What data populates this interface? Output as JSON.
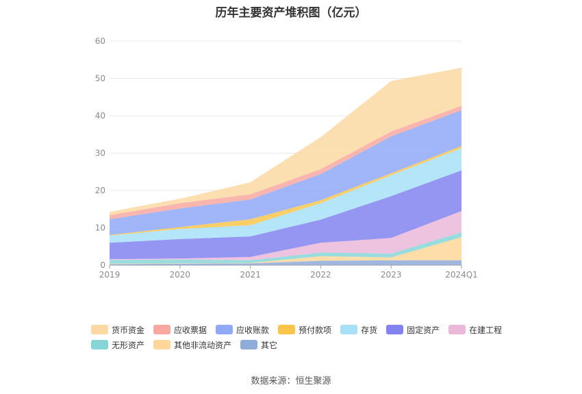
{
  "title": "历年主要资产堆积图（亿元）",
  "source": "数据来源：恒生聚源",
  "chart_data": {
    "type": "area",
    "stacked": true,
    "categories": [
      "2019",
      "2020",
      "2021",
      "2022",
      "2023",
      "2024Q1"
    ],
    "ylim": [
      0,
      60
    ],
    "yticks": [
      0,
      10,
      20,
      30,
      40,
      50,
      60
    ],
    "grid": true,
    "legend_position": "bottom",
    "series": [
      {
        "name": "其它",
        "color": "#8facd9",
        "values": [
          0.3,
          0.4,
          0.5,
          1.2,
          1.3,
          1.3
        ]
      },
      {
        "name": "其他非流动资产",
        "color": "#ffd79a",
        "values": [
          0.1,
          0.1,
          0.1,
          1.2,
          0.8,
          6.2
        ]
      },
      {
        "name": "无形资产",
        "color": "#86d6d8",
        "values": [
          1.0,
          1.0,
          0.7,
          1.0,
          1.0,
          1.3
        ]
      },
      {
        "name": "在建工程",
        "color": "#eab8d9",
        "values": [
          0.2,
          0.3,
          0.9,
          2.6,
          4.2,
          5.7
        ]
      },
      {
        "name": "固定资产",
        "color": "#8282f0",
        "values": [
          4.4,
          5.2,
          5.5,
          6.2,
          11.2,
          10.9
        ]
      },
      {
        "name": "存货",
        "color": "#a8e0f8",
        "values": [
          1.9,
          2.7,
          3.0,
          4.4,
          5.6,
          5.9
        ]
      },
      {
        "name": "预付款项",
        "color": "#fbc54c",
        "values": [
          0.2,
          0.5,
          1.6,
          0.8,
          0.5,
          0.6
        ]
      },
      {
        "name": "应收账款",
        "color": "#8fa9f7",
        "values": [
          4.2,
          5.0,
          5.3,
          7.0,
          9.9,
          9.6
        ]
      },
      {
        "name": "应收票据",
        "color": "#f9a8a0",
        "values": [
          1.1,
          1.4,
          1.4,
          1.3,
          1.3,
          1.2
        ]
      },
      {
        "name": "货币资金",
        "color": "#fcd9a2",
        "values": [
          0.9,
          1.2,
          3.2,
          8.6,
          13.5,
          10.2
        ]
      }
    ]
  },
  "legend_rows": [
    [
      "货币资金",
      "应收票据",
      "应收账款",
      "预付款项",
      "存货",
      "固定资产",
      "在建工程"
    ],
    [
      "无形资产",
      "其他非流动资产",
      "其它"
    ]
  ]
}
